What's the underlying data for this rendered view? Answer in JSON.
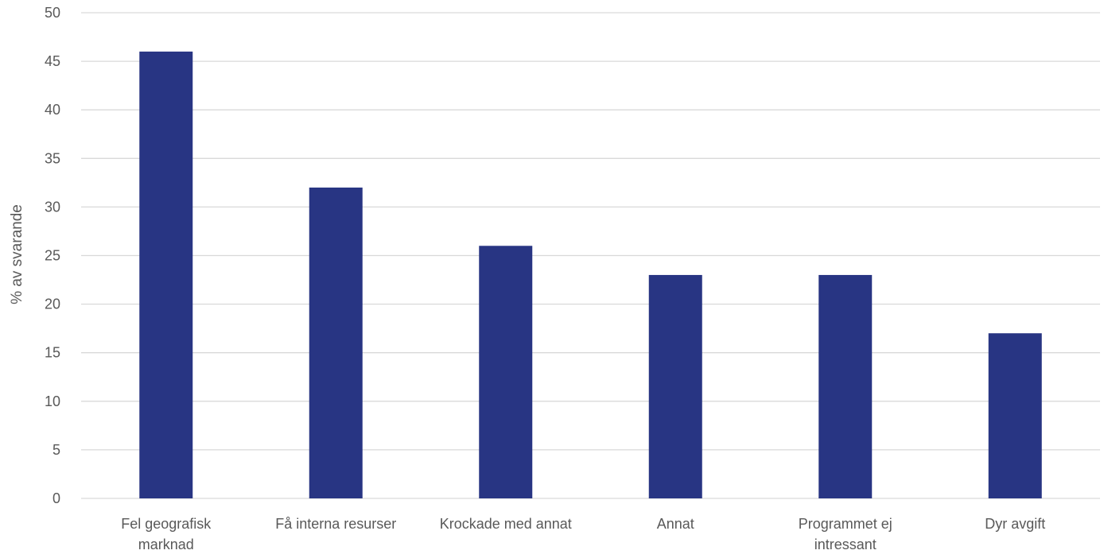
{
  "chart_data": {
    "type": "bar",
    "title": "",
    "xlabel": "",
    "ylabel": "% av svarande",
    "ylim": [
      0,
      50
    ],
    "yticks": [
      0,
      5,
      10,
      15,
      20,
      25,
      30,
      35,
      40,
      45,
      50
    ],
    "grid": true,
    "legend": "none",
    "categories": [
      [
        "Fel geografisk",
        "marknad"
      ],
      [
        "Få interna resurser"
      ],
      [
        "Krockade med annat"
      ],
      [
        "Annat"
      ],
      [
        "Programmet ej",
        "intressant"
      ],
      [
        "Dyr avgift"
      ]
    ],
    "values": [
      46,
      32,
      26,
      23,
      23,
      17
    ],
    "colors": {
      "bar": "#283583",
      "grid": "#d9d9d9",
      "text": "#595959"
    }
  }
}
